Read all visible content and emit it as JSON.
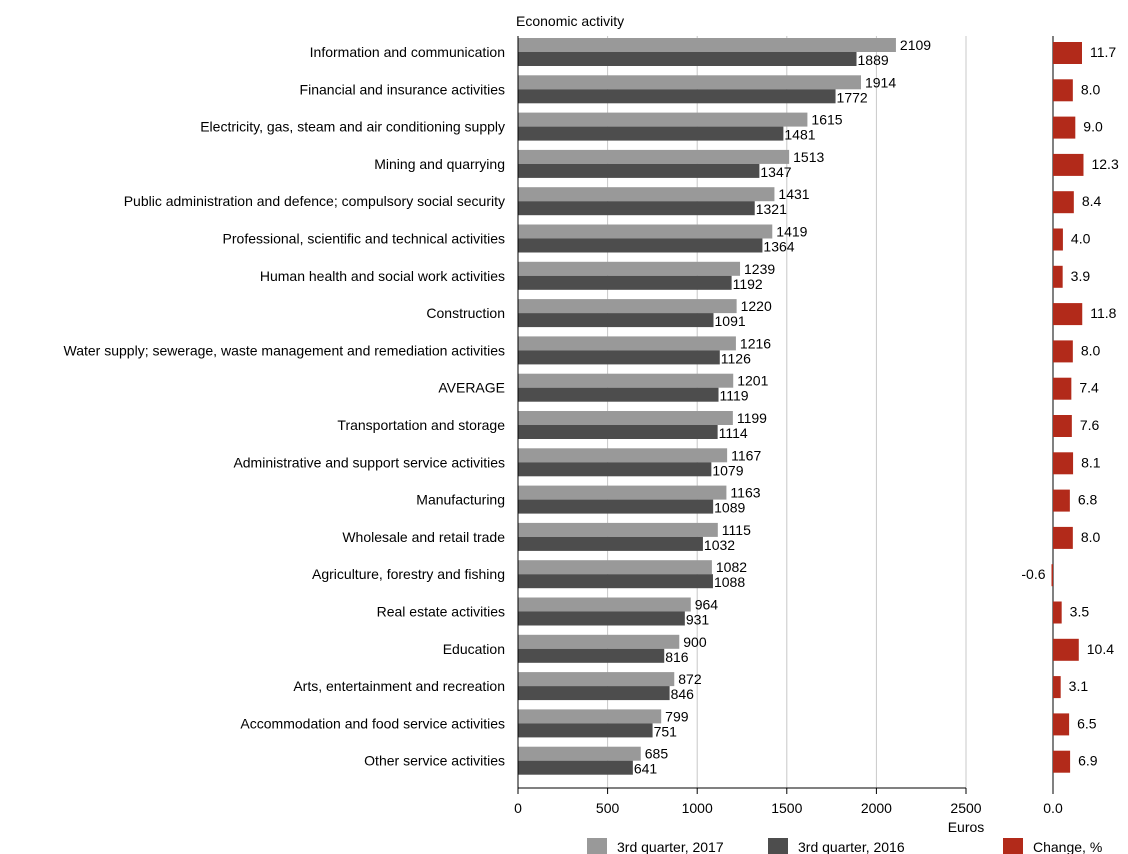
{
  "chart_data": [
    {
      "type": "bar",
      "orientation": "horizontal",
      "title": "Economic activity",
      "xlabel": "Euros",
      "xlim": [
        0,
        2500
      ],
      "xticks": [
        0,
        500,
        1000,
        1500,
        2000,
        2500
      ],
      "grid": true,
      "legend": "bottom",
      "categories": [
        "Information and communication",
        "Financial and insurance activities",
        "Electricity, gas, steam and air conditioning supply",
        "Mining and quarrying",
        "Public administration and defence; compulsory social security",
        "Professional, scientific and technical activities",
        "Human health and social work activities",
        "Construction",
        "Water supply; sewerage, waste management and remediation activities",
        "AVERAGE",
        "Transportation and storage",
        "Administrative and support service activities",
        "Manufacturing",
        "Wholesale and retail trade",
        "Agriculture, forestry and fishing",
        "Real estate activities",
        "Education",
        "Arts, entertainment and recreation",
        "Accommodation and food service activities",
        "Other service activities"
      ],
      "series": [
        {
          "name": "3rd quarter, 2017",
          "color": "#999999",
          "values": [
            2109,
            1914,
            1615,
            1513,
            1431,
            1419,
            1239,
            1220,
            1216,
            1201,
            1199,
            1167,
            1163,
            1115,
            1082,
            964,
            900,
            872,
            799,
            685
          ]
        },
        {
          "name": "3rd quarter, 2016",
          "color": "#4d4d4d",
          "values": [
            1889,
            1772,
            1481,
            1347,
            1321,
            1364,
            1192,
            1091,
            1126,
            1119,
            1114,
            1079,
            1089,
            1032,
            1088,
            931,
            816,
            846,
            751,
            641
          ]
        }
      ]
    },
    {
      "type": "bar",
      "orientation": "horizontal",
      "xticks": [
        0
      ],
      "tick_labels": [
        "0.0"
      ],
      "legend": "bottom",
      "series": [
        {
          "name": "Change, %",
          "color": "#b22a1a",
          "values": [
            11.7,
            8.0,
            9.0,
            12.3,
            8.4,
            4.0,
            3.9,
            11.8,
            8.0,
            7.4,
            7.6,
            8.1,
            6.8,
            8.0,
            -0.6,
            3.5,
            10.4,
            3.1,
            6.5,
            6.9
          ],
          "value_labels": [
            "11.7",
            "8.0",
            "9.0",
            "12.3",
            "8.4",
            "4.0",
            "3.9",
            "11.8",
            "8.0",
            "7.4",
            "7.6",
            "8.1",
            "6.8",
            "8.0",
            "-0.6",
            "3.5",
            "10.4",
            "3.1",
            "6.5",
            "6.9"
          ]
        }
      ]
    }
  ]
}
